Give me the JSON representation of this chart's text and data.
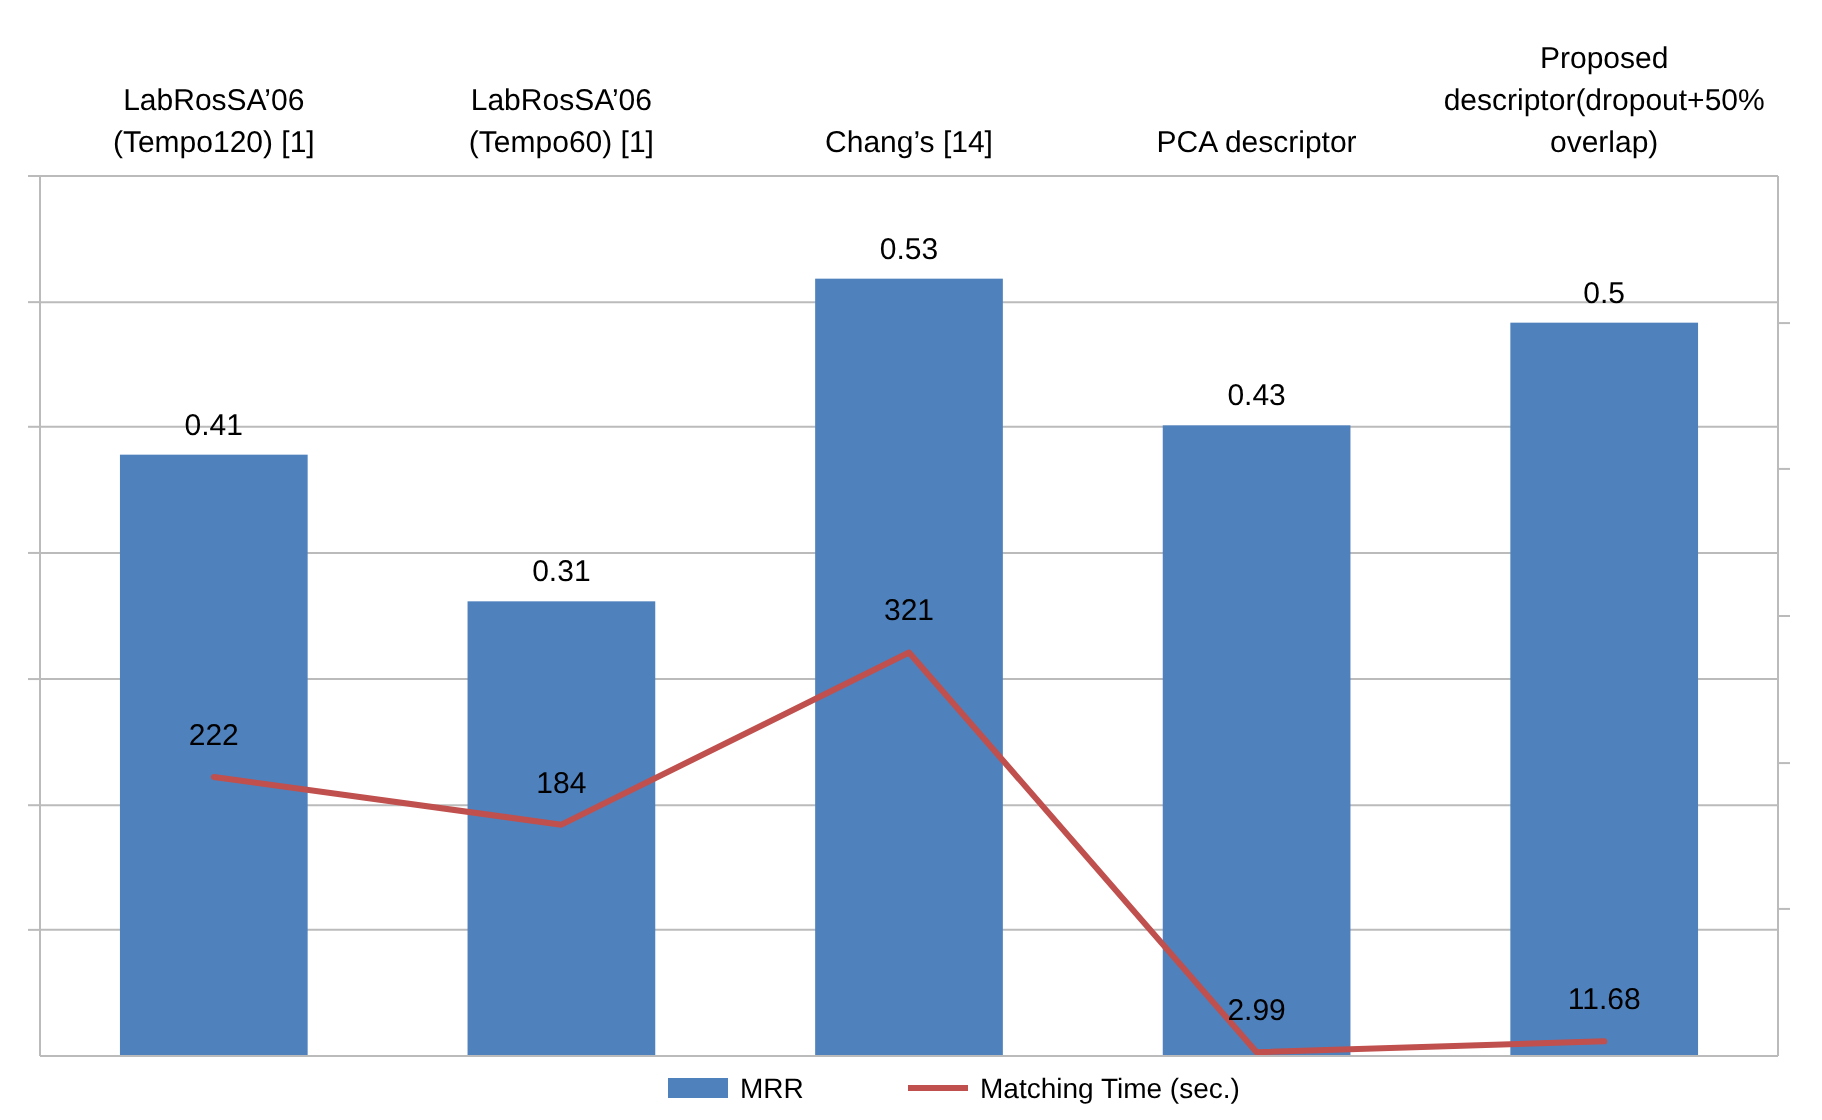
{
  "chart_data": {
    "type": "bar",
    "categories": [
      "LabRosSA’06 (Tempo120) [1]",
      "LabRosSA’06 (Tempo60) [1]",
      "Chang’s [14]",
      "PCA descriptor",
      "Proposed descriptor(dropout+50% overlap)"
    ],
    "series": [
      {
        "name": "MRR",
        "color": "#4f81bd",
        "values": [
          0.41,
          0.31,
          0.53,
          0.43,
          0.5
        ]
      },
      {
        "name": "Matching Time (sec.)",
        "type": "line",
        "axis": "y2",
        "color": "#c0504d",
        "values": [
          222,
          184,
          321,
          2.99,
          11.68
        ]
      }
    ],
    "ylim": [
      0,
      0.6
    ],
    "yticks": [
      {
        "value": 0.086,
        "label": null
      },
      {
        "value": 0.171,
        "label": null
      },
      {
        "value": 0.257,
        "label": null
      },
      {
        "value": 0.343,
        "label": null
      },
      {
        "value": 0.429,
        "label": null
      },
      {
        "value": 0.514,
        "label": null
      },
      {
        "value": 0.6,
        "label": null
      }
    ],
    "y2lim": [
      0,
      700
    ],
    "y2ticks": [
      {
        "value": 117,
        "label": null
      },
      {
        "value": 233,
        "label": null
      },
      {
        "value": 350,
        "label": null
      },
      {
        "value": 467,
        "label": null
      },
      {
        "value": 583,
        "label": null
      }
    ],
    "grid": "y",
    "legend": "bottom",
    "data_labels": true,
    "marker": "none",
    "line_style": "solid"
  }
}
